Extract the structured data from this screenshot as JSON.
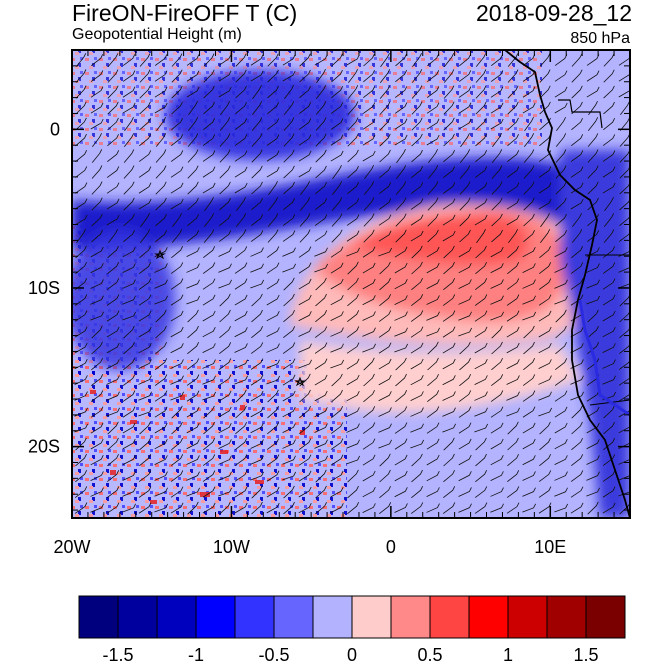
{
  "title": {
    "main": "FireON-FireOFF T (C)",
    "datetime": "2018-09-28_12",
    "subtitle": "Geopotential Height (m)",
    "level": "850 hPa"
  },
  "axes": {
    "x_ticks": [
      {
        "label": "20W",
        "lon": -20
      },
      {
        "label": "10W",
        "lon": -10
      },
      {
        "label": "0",
        "lon": 0
      },
      {
        "label": "10E",
        "lon": 10
      }
    ],
    "y_ticks": [
      {
        "label": "0",
        "lat": 0
      },
      {
        "label": "10S",
        "lat": -10
      },
      {
        "label": "20S",
        "lat": -20
      }
    ],
    "lon_range": [
      -20,
      15
    ],
    "lat_range": [
      -24.5,
      5
    ]
  },
  "colorbar": {
    "colors": [
      "#00007f",
      "#00009f",
      "#0000bf",
      "#0000ff",
      "#3333ff",
      "#6666ff",
      "#b2b2ff",
      "#ffcccc",
      "#ff8888",
      "#ff4444",
      "#ff0000",
      "#cc0000",
      "#a00000",
      "#7a0000"
    ],
    "tick_labels": [
      "-1.5",
      "-1",
      "-0.5",
      "0",
      "0.5",
      "1",
      "1.5"
    ],
    "tick_values": [
      -1.5,
      -1,
      -0.5,
      0,
      0.5,
      1,
      1.5
    ],
    "range": [
      -1.75,
      1.75
    ]
  }
}
